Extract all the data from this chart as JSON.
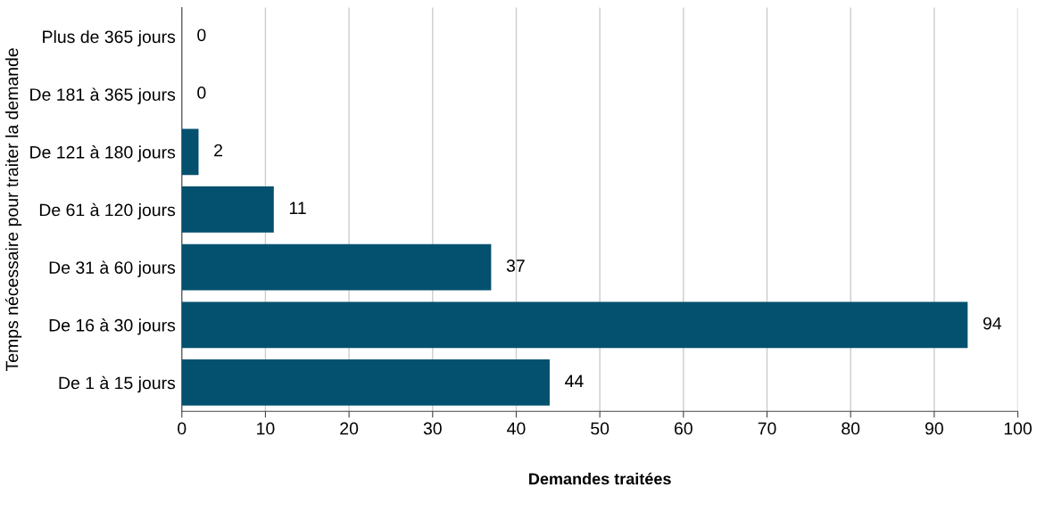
{
  "chart_data": {
    "type": "bar",
    "orientation": "horizontal",
    "xlabel": "Demandes traitées",
    "ylabel": "Temps nécessaire pour traiter la demande",
    "categories": [
      "Plus de 365 jours",
      "De 181 à 365 jours",
      "De 121 à 180 jours",
      "De 61 à 120 jours",
      "De 31 à 60 jours",
      "De 16 à 30 jours",
      "De 1 à 15 jours"
    ],
    "values": [
      0,
      0,
      2,
      11,
      37,
      94,
      44
    ],
    "color": "#03506f",
    "xlim": [
      0,
      100
    ],
    "xticks": [
      0,
      10,
      20,
      30,
      40,
      50,
      60,
      70,
      80,
      90,
      100
    ],
    "grid": "x",
    "data_labels": true
  }
}
